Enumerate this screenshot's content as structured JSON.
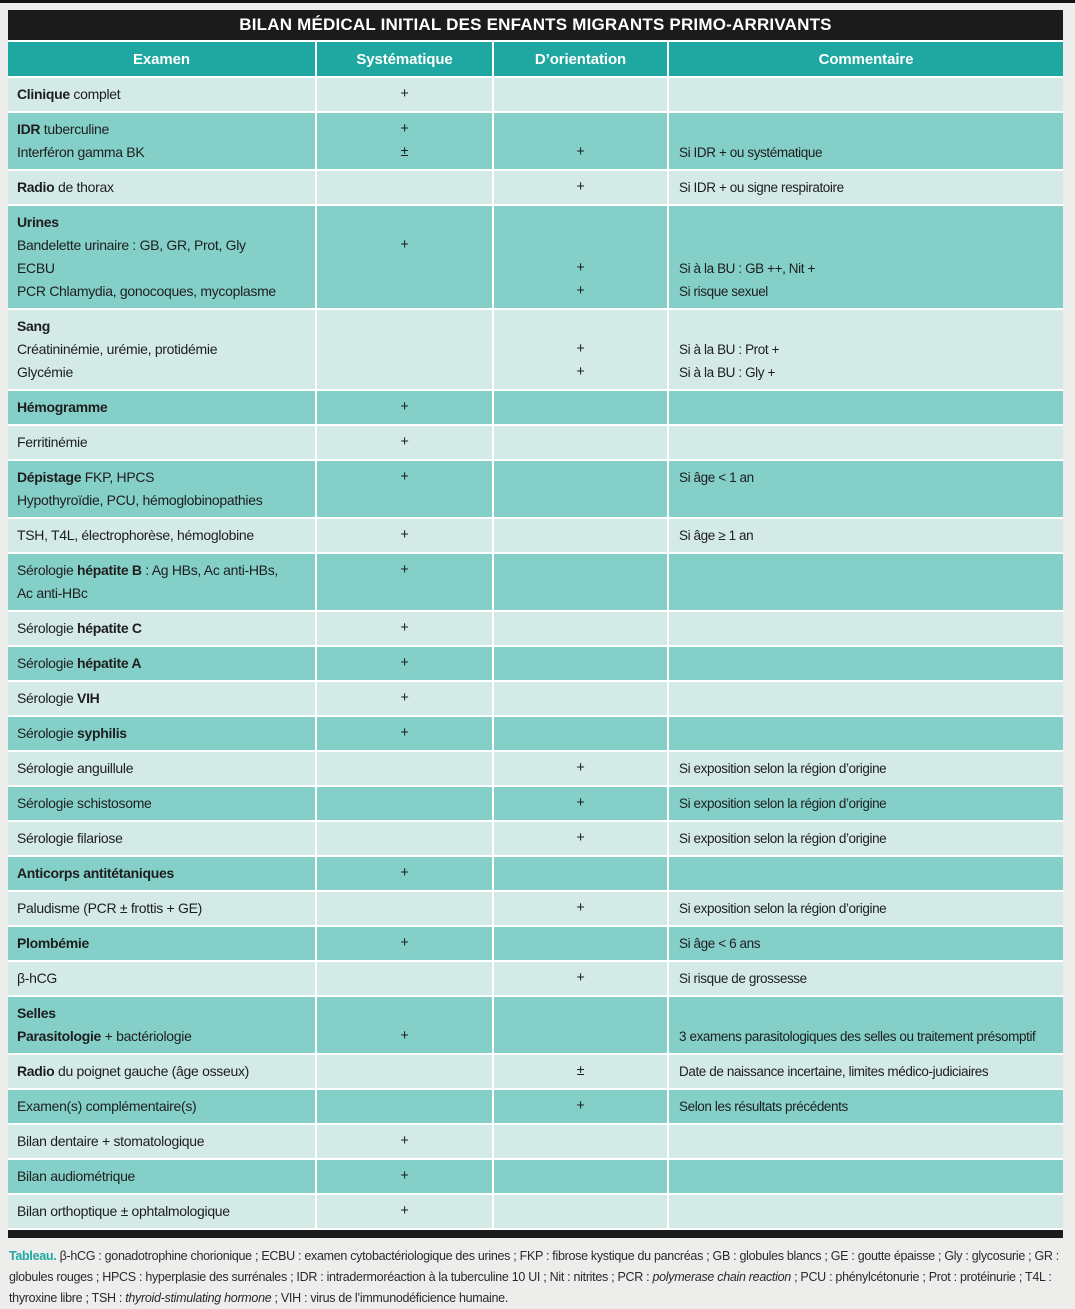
{
  "title": "BILAN MÉDICAL INITIAL DES ENFANTS MIGRANTS PRIMO-ARRIVANTS",
  "columns": [
    "Examen",
    "Systématique",
    "D’orientation",
    "Commentaire"
  ],
  "colors": {
    "header_teal": "#1fa8a1",
    "row_dark": "#85cfc9",
    "row_light": "#d3eae7",
    "title_bg": "#1b1b1b",
    "page_bg": "#ededec",
    "footnote_accent": "#1fa8a1"
  },
  "rows": [
    {
      "shade": "light",
      "lines": [
        {
          "ex": [
            [
              "Clinique",
              1
            ],
            [
              " complet",
              0
            ]
          ],
          "sys": "+",
          "ori": "",
          "com": ""
        }
      ]
    },
    {
      "shade": "dark",
      "lines": [
        {
          "ex": [
            [
              "IDR",
              1
            ],
            [
              " tuberculine",
              0
            ]
          ],
          "sys": "+",
          "ori": "",
          "com": ""
        },
        {
          "ex": [
            [
              "Interféron gamma BK",
              0
            ]
          ],
          "sys": "±",
          "ori": "+",
          "com": "Si IDR + ou systématique"
        }
      ]
    },
    {
      "shade": "light",
      "lines": [
        {
          "ex": [
            [
              "Radio",
              1
            ],
            [
              " de thorax",
              0
            ]
          ],
          "sys": "",
          "ori": "+",
          "com": "Si IDR + ou signe respiratoire"
        }
      ]
    },
    {
      "shade": "dark",
      "lines": [
        {
          "ex": [
            [
              "Urines",
              1
            ]
          ],
          "sys": "",
          "ori": "",
          "com": ""
        },
        {
          "ex": [
            [
              "Bandelette urinaire : GB, GR, Prot, Gly",
              0
            ]
          ],
          "sys": "+",
          "ori": "",
          "com": ""
        },
        {
          "ex": [
            [
              "ECBU",
              0
            ]
          ],
          "sys": "",
          "ori": "+",
          "com": "Si à la BU : GB ++, Nit +"
        },
        {
          "ex": [
            [
              "PCR Chlamydia, gonocoques, mycoplasme",
              0
            ]
          ],
          "sys": "",
          "ori": "+",
          "com": "Si risque sexuel"
        }
      ]
    },
    {
      "shade": "light",
      "lines": [
        {
          "ex": [
            [
              "Sang",
              1
            ]
          ],
          "sys": "",
          "ori": "",
          "com": ""
        },
        {
          "ex": [
            [
              "Créatininémie, urémie, protidémie",
              0
            ]
          ],
          "sys": "",
          "ori": "+",
          "com": "Si à la BU : Prot +"
        },
        {
          "ex": [
            [
              "Glycémie",
              0
            ]
          ],
          "sys": "",
          "ori": "+",
          "com": "Si à la BU : Gly +"
        }
      ]
    },
    {
      "shade": "dark",
      "lines": [
        {
          "ex": [
            [
              "Hémogramme",
              1
            ]
          ],
          "sys": "+",
          "ori": "",
          "com": ""
        }
      ]
    },
    {
      "shade": "light",
      "lines": [
        {
          "ex": [
            [
              "Ferritinémie",
              0
            ]
          ],
          "sys": "+",
          "ori": "",
          "com": ""
        }
      ]
    },
    {
      "shade": "dark",
      "lines": [
        {
          "ex": [
            [
              "Dépistage",
              1
            ],
            [
              " FKP, HPCS",
              0
            ]
          ],
          "sys": "+",
          "ori": "",
          "com": "Si âge < 1 an"
        },
        {
          "ex": [
            [
              "Hypothyroïdie, PCU, hémoglobinopathies",
              0
            ]
          ],
          "sys": "",
          "ori": "",
          "com": ""
        }
      ]
    },
    {
      "shade": "light",
      "lines": [
        {
          "ex": [
            [
              "TSH, T4L, électrophorèse, hémoglobine",
              0
            ]
          ],
          "sys": "+",
          "ori": "",
          "com": "Si âge ≥ 1 an"
        }
      ]
    },
    {
      "shade": "dark",
      "lines": [
        {
          "ex": [
            [
              "Sérologie ",
              0
            ],
            [
              "hépatite B",
              1
            ],
            [
              " : Ag HBs, Ac anti-HBs,",
              0
            ]
          ],
          "sys": "+",
          "ori": "",
          "com": ""
        },
        {
          "ex": [
            [
              "Ac anti-HBc",
              0
            ]
          ],
          "sys": "",
          "ori": "",
          "com": ""
        }
      ]
    },
    {
      "shade": "light",
      "lines": [
        {
          "ex": [
            [
              "Sérologie ",
              0
            ],
            [
              "hépatite C",
              1
            ]
          ],
          "sys": "+",
          "ori": "",
          "com": ""
        }
      ]
    },
    {
      "shade": "dark",
      "lines": [
        {
          "ex": [
            [
              "Sérologie ",
              0
            ],
            [
              "hépatite A",
              1
            ]
          ],
          "sys": "+",
          "ori": "",
          "com": ""
        }
      ]
    },
    {
      "shade": "light",
      "lines": [
        {
          "ex": [
            [
              "Sérologie ",
              0
            ],
            [
              "VIH",
              1
            ]
          ],
          "sys": "+",
          "ori": "",
          "com": ""
        }
      ]
    },
    {
      "shade": "dark",
      "lines": [
        {
          "ex": [
            [
              "Sérologie ",
              0
            ],
            [
              "syphilis",
              1
            ]
          ],
          "sys": "+",
          "ori": "",
          "com": ""
        }
      ]
    },
    {
      "shade": "light",
      "lines": [
        {
          "ex": [
            [
              "Sérologie anguillule",
              0
            ]
          ],
          "sys": "",
          "ori": "+",
          "com": "Si exposition selon la région d’origine"
        }
      ]
    },
    {
      "shade": "dark",
      "lines": [
        {
          "ex": [
            [
              "Sérologie schistosome",
              0
            ]
          ],
          "sys": "",
          "ori": "+",
          "com": "Si exposition selon la région d’origine"
        }
      ]
    },
    {
      "shade": "light",
      "lines": [
        {
          "ex": [
            [
              "Sérologie filariose",
              0
            ]
          ],
          "sys": "",
          "ori": "+",
          "com": "Si exposition selon la région d’origine"
        }
      ]
    },
    {
      "shade": "dark",
      "lines": [
        {
          "ex": [
            [
              "Anticorps antitétaniques",
              1
            ]
          ],
          "sys": "+",
          "ori": "",
          "com": ""
        }
      ]
    },
    {
      "shade": "light",
      "lines": [
        {
          "ex": [
            [
              "Paludisme (PCR ± frottis + GE)",
              0
            ]
          ],
          "sys": "",
          "ori": "+",
          "com": "Si exposition selon la région d’origine"
        }
      ]
    },
    {
      "shade": "dark",
      "lines": [
        {
          "ex": [
            [
              "Plombémie",
              1
            ]
          ],
          "sys": "+",
          "ori": "",
          "com": "Si âge < 6 ans"
        }
      ]
    },
    {
      "shade": "light",
      "lines": [
        {
          "ex": [
            [
              "β-hCG",
              0
            ]
          ],
          "sys": "",
          "ori": "+",
          "com": "Si risque de grossesse"
        }
      ]
    },
    {
      "shade": "dark",
      "lines": [
        {
          "ex": [
            [
              "Selles",
              1
            ]
          ],
          "sys": "",
          "ori": "",
          "com": ""
        },
        {
          "ex": [
            [
              "Parasitologie",
              1
            ],
            [
              " + bactériologie",
              0
            ]
          ],
          "sys": "+",
          "ori": "",
          "com": "3 examens parasitologiques des selles ou traitement présomptif"
        }
      ]
    },
    {
      "shade": "light",
      "lines": [
        {
          "ex": [
            [
              "Radio",
              1
            ],
            [
              " du poignet gauche (âge osseux)",
              0
            ]
          ],
          "sys": "",
          "ori": "±",
          "com": "Date de naissance incertaine, limites médico-judiciaires"
        }
      ]
    },
    {
      "shade": "dark",
      "lines": [
        {
          "ex": [
            [
              "Examen(s) complémentaire(s)",
              0
            ]
          ],
          "sys": "",
          "ori": "+",
          "com": "Selon les résultats précédents"
        }
      ]
    },
    {
      "shade": "light",
      "lines": [
        {
          "ex": [
            [
              "Bilan dentaire + stomatologique",
              0
            ]
          ],
          "sys": "+",
          "ori": "",
          "com": ""
        }
      ]
    },
    {
      "shade": "dark",
      "lines": [
        {
          "ex": [
            [
              "Bilan audiométrique",
              0
            ]
          ],
          "sys": "+",
          "ori": "",
          "com": ""
        }
      ]
    },
    {
      "shade": "light",
      "lines": [
        {
          "ex": [
            [
              "Bilan orthoptique ± ophtalmologique",
              0
            ]
          ],
          "sys": "+",
          "ori": "",
          "com": ""
        }
      ]
    }
  ],
  "footnote": {
    "segments": [
      {
        "text": "Tableau. ",
        "style": "footnote-label"
      },
      {
        "text": "β-hCG : gonadotrophine chorionique ; ECBU : examen cytobactériologique des urines ; FKP : fibrose kystique du pancréas ; GB : globules blancs ; GE : goutte épaisse ; Gly : glycosurie ; GR : globules rouges ; HPCS : hyperplasie des surrénales ; IDR : intradermoréaction à la tuberculine 10 UI ; Nit : nitrites ; PCR : ",
        "style": ""
      },
      {
        "text": "polymerase chain reaction",
        "style": "italic"
      },
      {
        "text": " ; PCU : phénylcétonurie ; Prot : protéinurie ; T4L : thyroxine libre ; TSH : ",
        "style": ""
      },
      {
        "text": "thyroid-stimulating hormone",
        "style": "italic"
      },
      {
        "text": " ; VIH : virus de l’immunodéficience humaine.",
        "style": ""
      }
    ]
  }
}
